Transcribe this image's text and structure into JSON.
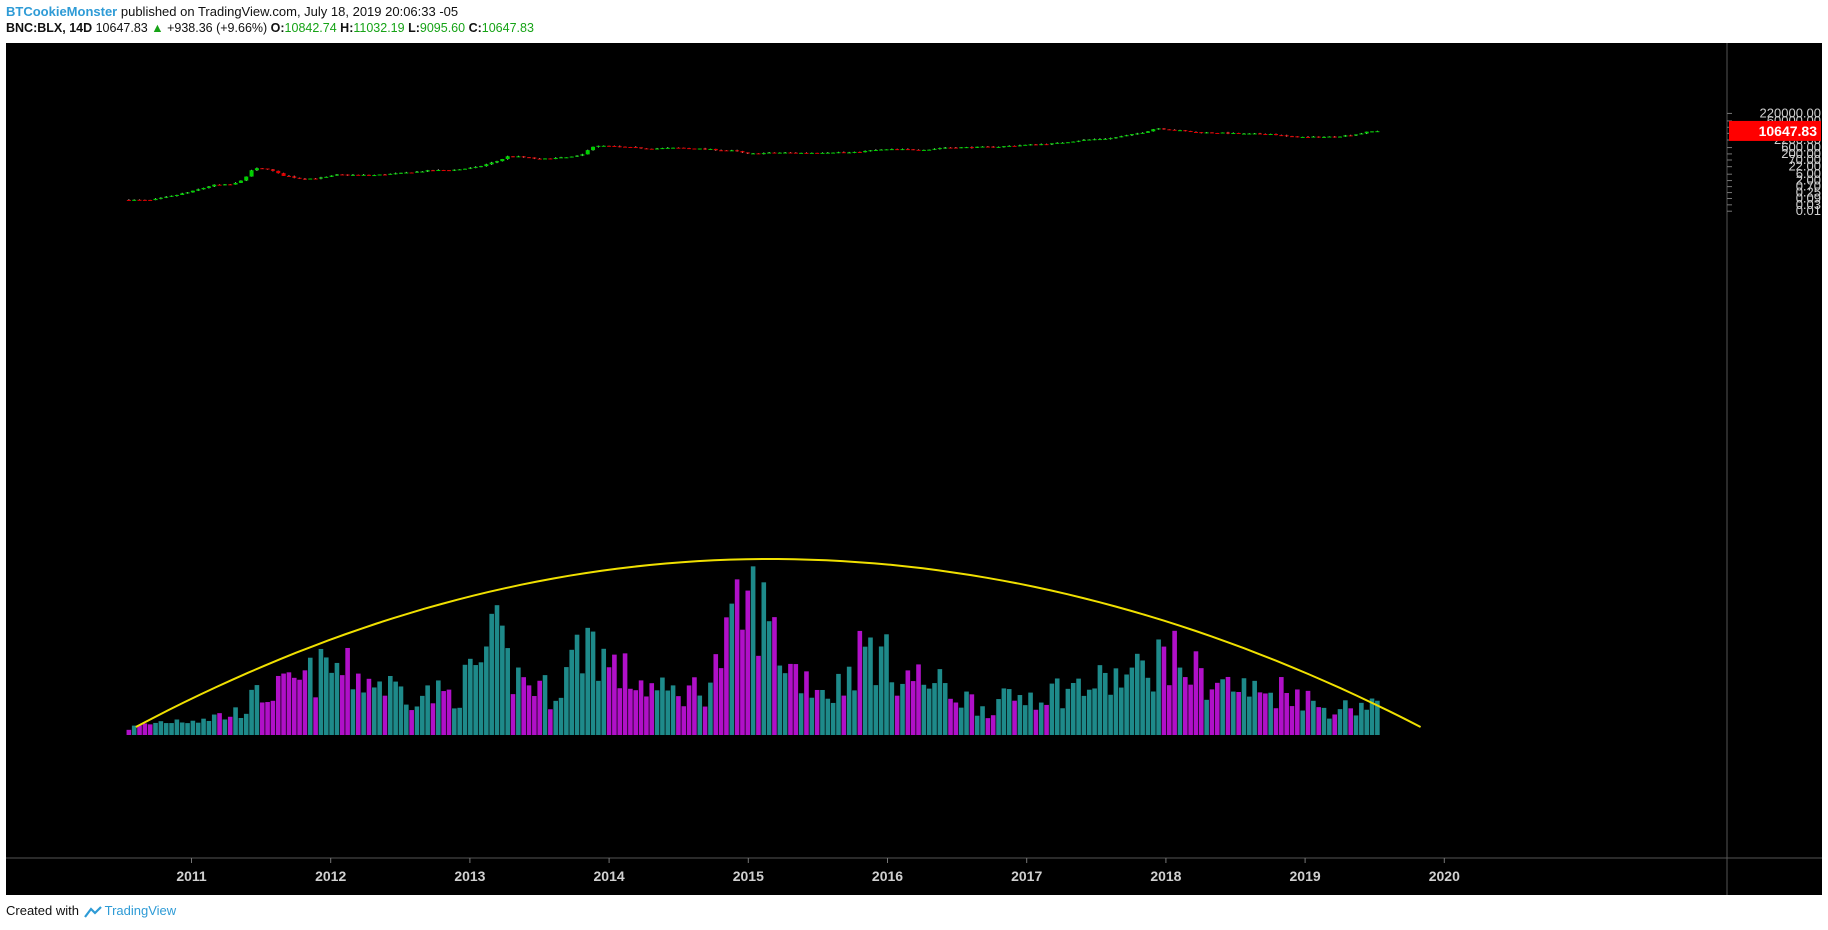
{
  "header": {
    "author": "BTCookieMonster",
    "published": "published on TradingView.com, July 18, 2019 20:06:33 -05",
    "symbol": "BNC:BLX, 14D",
    "last": "10647.83",
    "change_arrow": "▲",
    "change": "+938.36 (+9.66%)",
    "o_label": "O:",
    "o": "10842.74",
    "h_label": "H:",
    "h": "11032.19",
    "l_label": "L:",
    "l": "9095.60",
    "c_label": "C:",
    "c": "10647.83"
  },
  "footer": {
    "created_with": "Created with",
    "brand": "TradingView"
  },
  "chart_data": {
    "type": "candlestick",
    "title": "",
    "scale": "log",
    "x_years": [
      "2011",
      "2012",
      "2013",
      "2014",
      "2015",
      "2016",
      "2017",
      "2018",
      "2019",
      "2020"
    ],
    "y_ticks": [
      "220000.00",
      "60000.00",
      "20000.00",
      "7000.00",
      "2200.00",
      "600.00",
      "200.00",
      "70.00",
      "22.00",
      "6.00",
      "2.00",
      "0.70",
      "0.25",
      "0.09",
      "0.03",
      "0.01"
    ],
    "last_price_label": "10647.83",
    "colors": {
      "background": "#000000",
      "up": "#00d000",
      "down": "#e00000",
      "volume_up": "#1e8a8a",
      "volume_down": "#b010c8",
      "curve": "#f0e000",
      "last_price": "#ff0000"
    },
    "price_path": [
      [
        2010.55,
        0.07
      ],
      [
        2010.7,
        0.065
      ],
      [
        2010.85,
        0.13
      ],
      [
        2011.0,
        0.3
      ],
      [
        2011.15,
        0.9
      ],
      [
        2011.3,
        1.0
      ],
      [
        2011.4,
        4.0
      ],
      [
        2011.44,
        16
      ],
      [
        2011.55,
        15
      ],
      [
        2011.65,
        5
      ],
      [
        2011.8,
        2.6
      ],
      [
        2011.95,
        3.3
      ],
      [
        2012.05,
        5.5
      ],
      [
        2012.3,
        5.0
      ],
      [
        2012.5,
        7
      ],
      [
        2012.7,
        11
      ],
      [
        2012.9,
        13
      ],
      [
        2013.05,
        20
      ],
      [
        2013.2,
        60
      ],
      [
        2013.28,
        140
      ],
      [
        2013.4,
        110
      ],
      [
        2013.5,
        80
      ],
      [
        2013.7,
        110
      ],
      [
        2013.8,
        150
      ],
      [
        2013.87,
        700
      ],
      [
        2013.95,
        800
      ],
      [
        2014.1,
        650
      ],
      [
        2014.3,
        500
      ],
      [
        2014.5,
        570
      ],
      [
        2014.7,
        450
      ],
      [
        2014.9,
        340
      ],
      [
        2015.0,
        200
      ],
      [
        2015.2,
        250
      ],
      [
        2015.4,
        235
      ],
      [
        2015.6,
        270
      ],
      [
        2015.75,
        250
      ],
      [
        2015.9,
        380
      ],
      [
        2016.0,
        430
      ],
      [
        2016.3,
        430
      ],
      [
        2016.4,
        600
      ],
      [
        2016.6,
        620
      ],
      [
        2016.8,
        700
      ],
      [
        2017.0,
        950
      ],
      [
        2017.2,
        1200
      ],
      [
        2017.4,
        2200
      ],
      [
        2017.6,
        3000
      ],
      [
        2017.75,
        5500
      ],
      [
        2017.85,
        9000
      ],
      [
        2017.93,
        17500
      ],
      [
        2018.05,
        13000
      ],
      [
        2018.2,
        8500
      ],
      [
        2018.4,
        7500
      ],
      [
        2018.55,
        6400
      ],
      [
        2018.75,
        6300
      ],
      [
        2018.88,
        4000
      ],
      [
        2019.0,
        3600
      ],
      [
        2019.2,
        3900
      ],
      [
        2019.35,
        5500
      ],
      [
        2019.45,
        9000
      ],
      [
        2019.52,
        10647.83
      ]
    ],
    "volume_profile": [
      [
        2010.55,
        0.05
      ],
      [
        2010.8,
        0.1
      ],
      [
        2011.0,
        0.12
      ],
      [
        2011.3,
        0.15
      ],
      [
        2011.5,
        0.3
      ],
      [
        2011.7,
        0.35
      ],
      [
        2012.0,
        0.5
      ],
      [
        2012.3,
        0.4
      ],
      [
        2012.6,
        0.3
      ],
      [
        2012.9,
        0.3
      ],
      [
        2013.2,
        0.7
      ],
      [
        2013.3,
        0.45
      ],
      [
        2013.6,
        0.3
      ],
      [
        2013.85,
        0.75
      ],
      [
        2014.0,
        0.5
      ],
      [
        2014.4,
        0.3
      ],
      [
        2014.7,
        0.35
      ],
      [
        2014.95,
        0.9
      ],
      [
        2015.05,
        1.0
      ],
      [
        2015.3,
        0.5
      ],
      [
        2015.6,
        0.3
      ],
      [
        2015.85,
        0.65
      ],
      [
        2016.1,
        0.45
      ],
      [
        2016.4,
        0.35
      ],
      [
        2016.7,
        0.2
      ],
      [
        2017.0,
        0.3
      ],
      [
        2017.4,
        0.35
      ],
      [
        2017.8,
        0.45
      ],
      [
        2018.0,
        0.6
      ],
      [
        2018.3,
        0.4
      ],
      [
        2018.7,
        0.3
      ],
      [
        2018.9,
        0.35
      ],
      [
        2019.1,
        0.2
      ],
      [
        2019.3,
        0.2
      ],
      [
        2019.5,
        0.25
      ]
    ],
    "curve_peak_year": 2015.15
  }
}
